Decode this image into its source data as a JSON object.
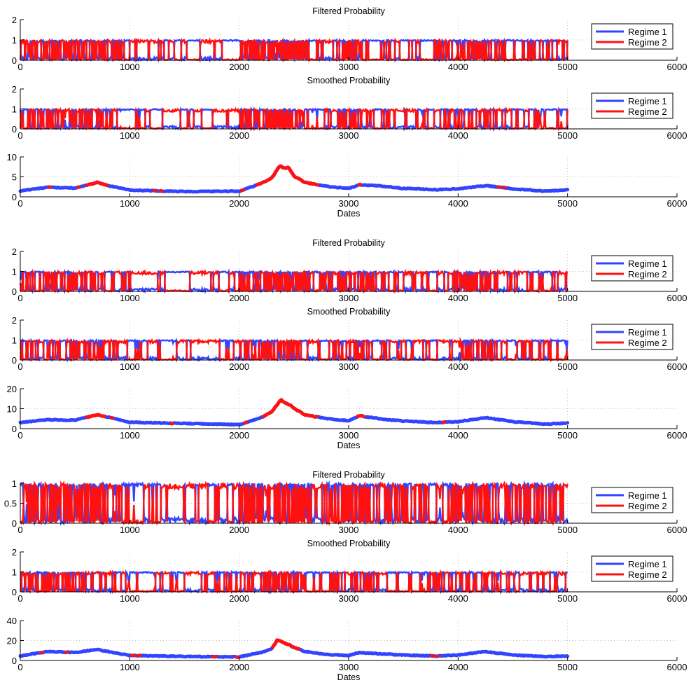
{
  "colors": {
    "regime1": "#3344ff",
    "regime2": "#ff1111",
    "axis": "#000000",
    "grid": "#b0b0b0"
  },
  "chart_data": [
    {
      "type": "line",
      "kind": "regime",
      "title": "Filtered Probability",
      "xlabel": "",
      "xlim": [
        0,
        6000
      ],
      "ylim": [
        0,
        2
      ],
      "yticks": [
        0,
        1,
        2
      ],
      "xticks": [
        0,
        1000,
        2000,
        3000,
        4000,
        5000,
        6000
      ],
      "grid": true,
      "legend": "top-right",
      "series": [
        {
          "name": "Regime 1",
          "color": "#3344ff"
        },
        {
          "name": "Regime 2",
          "color": "#ff1111"
        }
      ],
      "x_range": [
        1,
        5000
      ],
      "density": 0.3
    },
    {
      "type": "line",
      "kind": "regime",
      "title": "Smoothed Probability",
      "xlabel": "",
      "xlim": [
        0,
        6000
      ],
      "ylim": [
        0,
        2
      ],
      "yticks": [
        0,
        1,
        2
      ],
      "xticks": [
        0,
        1000,
        2000,
        3000,
        4000,
        5000,
        6000
      ],
      "grid": true,
      "legend": "top-right",
      "series": [
        {
          "name": "Regime 1",
          "color": "#3344ff"
        },
        {
          "name": "Regime 2",
          "color": "#ff1111"
        }
      ],
      "x_range": [
        1,
        5000
      ],
      "density": 0.22
    },
    {
      "type": "line",
      "kind": "volatility",
      "title": "",
      "xlabel": "Dates",
      "xlim": [
        0,
        6000
      ],
      "ylim": [
        0,
        10
      ],
      "yticks": [
        0,
        5,
        10
      ],
      "xticks": [
        0,
        1000,
        2000,
        3000,
        4000,
        5000,
        6000
      ],
      "grid": true,
      "x": [
        0,
        250,
        500,
        700,
        800,
        1000,
        1500,
        2000,
        2200,
        2300,
        2370,
        2420,
        2450,
        2500,
        2600,
        2800,
        3000,
        3100,
        3300,
        3500,
        3800,
        4000,
        4250,
        4500,
        4800,
        5000
      ],
      "y": [
        1.5,
        2.4,
        2.2,
        3.6,
        2.8,
        1.7,
        1.3,
        1.4,
        3.3,
        4.8,
        7.8,
        7.1,
        7.4,
        5.2,
        3.6,
        2.6,
        2.1,
        3.0,
        2.7,
        2.1,
        1.8,
        2.0,
        2.8,
        2.0,
        1.4,
        1.8
      ]
    },
    {
      "type": "line",
      "kind": "regime",
      "title": "Filtered Probability",
      "xlabel": "",
      "xlim": [
        0,
        6000
      ],
      "ylim": [
        0,
        2
      ],
      "yticks": [
        0,
        1,
        2
      ],
      "xticks": [
        0,
        1000,
        2000,
        3000,
        4000,
        5000,
        6000
      ],
      "grid": true,
      "legend": "top-right",
      "series": [
        {
          "name": "Regime 1",
          "color": "#3344ff"
        },
        {
          "name": "Regime 2",
          "color": "#ff1111"
        }
      ],
      "x_range": [
        1,
        5000
      ],
      "density": 0.24
    },
    {
      "type": "line",
      "kind": "regime",
      "title": "Smoothed Probability",
      "xlabel": "",
      "xlim": [
        0,
        6000
      ],
      "ylim": [
        0,
        2
      ],
      "yticks": [
        0,
        1,
        2
      ],
      "xticks": [
        0,
        1000,
        2000,
        3000,
        4000,
        5000,
        6000
      ],
      "grid": true,
      "legend": "top-right",
      "series": [
        {
          "name": "Regime 1",
          "color": "#3344ff"
        },
        {
          "name": "Regime 2",
          "color": "#ff1111"
        }
      ],
      "x_range": [
        1,
        5000
      ],
      "density": 0.18
    },
    {
      "type": "line",
      "kind": "volatility",
      "title": "",
      "xlabel": "Dates",
      "xlim": [
        0,
        6000
      ],
      "ylim": [
        0,
        20
      ],
      "yticks": [
        0,
        10,
        20
      ],
      "xticks": [
        0,
        1000,
        2000,
        3000,
        4000,
        5000,
        6000
      ],
      "grid": true,
      "x": [
        0,
        250,
        500,
        700,
        800,
        1000,
        1500,
        2000,
        2200,
        2300,
        2380,
        2430,
        2460,
        2520,
        2600,
        2800,
        3000,
        3100,
        3300,
        3500,
        3800,
        4000,
        4250,
        4500,
        4800,
        5000
      ],
      "y": [
        3.0,
        4.5,
        4.2,
        7.0,
        5.8,
        3.2,
        2.6,
        2.0,
        5.5,
        8.5,
        14.5,
        12.5,
        12.0,
        9.5,
        7.0,
        5.0,
        4.0,
        6.5,
        4.8,
        3.8,
        3.0,
        3.5,
        5.5,
        3.5,
        2.3,
        2.8
      ]
    },
    {
      "type": "line",
      "kind": "regime",
      "title": "Filtered Probability",
      "xlabel": "",
      "xlim": [
        0,
        6000
      ],
      "ylim": [
        0,
        1
      ],
      "yticks": [
        0,
        0.5,
        1
      ],
      "xticks": [
        0,
        1000,
        2000,
        3000,
        4000,
        5000,
        6000
      ],
      "grid": true,
      "legend": "top-right",
      "series": [
        {
          "name": "Regime 1",
          "color": "#3344ff"
        },
        {
          "name": "Regime 2",
          "color": "#ff1111"
        }
      ],
      "x_range": [
        1,
        5000
      ],
      "density": 0.35
    },
    {
      "type": "line",
      "kind": "regime",
      "title": "Smoothed Probability",
      "xlabel": "",
      "xlim": [
        0,
        6000
      ],
      "ylim": [
        0,
        2
      ],
      "yticks": [
        0,
        1,
        2
      ],
      "xticks": [
        0,
        1000,
        2000,
        3000,
        4000,
        5000,
        6000
      ],
      "grid": true,
      "legend": "top-right",
      "series": [
        {
          "name": "Regime 1",
          "color": "#3344ff"
        },
        {
          "name": "Regime 2",
          "color": "#ff1111"
        }
      ],
      "x_range": [
        1,
        5000
      ],
      "density": 0.2
    },
    {
      "type": "line",
      "kind": "volatility",
      "title": "",
      "xlabel": "Dates",
      "xlim": [
        0,
        6000
      ],
      "ylim": [
        0,
        40
      ],
      "yticks": [
        0,
        20,
        40
      ],
      "xticks": [
        0,
        1000,
        2000,
        3000,
        4000,
        5000,
        6000
      ],
      "grid": true,
      "x": [
        0,
        250,
        500,
        700,
        800,
        1000,
        1500,
        2000,
        2200,
        2300,
        2350,
        2400,
        2450,
        2500,
        2600,
        2800,
        3000,
        3100,
        3300,
        3500,
        3800,
        4000,
        4250,
        4500,
        4800,
        5000
      ],
      "y": [
        4.5,
        9.0,
        8.0,
        11.0,
        9.0,
        5.0,
        4.0,
        3.5,
        8.0,
        12.0,
        21.0,
        18.0,
        16.0,
        13.0,
        9.0,
        6.0,
        5.0,
        8.0,
        6.5,
        5.5,
        4.5,
        5.5,
        9.0,
        5.5,
        3.8,
        4.5
      ]
    }
  ]
}
